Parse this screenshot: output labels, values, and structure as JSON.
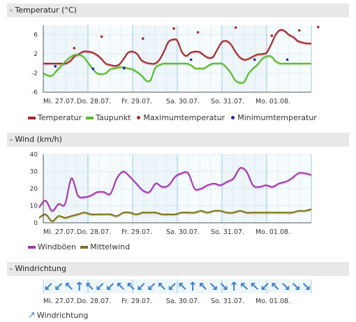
{
  "x_labels": [
    "Mi. 27.07.",
    "Do. 28.07.",
    "Fr. 29.07.",
    "Sa. 30.07.",
    "So. 31.07.",
    "Mo. 01.08."
  ],
  "colors": {
    "temperature": "#a3282a",
    "dewpoint": "#5cb82c",
    "max_temp": "#9a2e22",
    "min_temp": "#2222aa",
    "gust": "#a335b0",
    "wind": "#807010",
    "arrow": "#3a7bd5",
    "plot_bg": "#eef6fa",
    "grid": "#9ccbe0"
  },
  "sections": {
    "temperature_title": "- Temperatur (°C)",
    "wind_title": "- Wind (km/h)",
    "direction_title": "- Windrichtung"
  },
  "legend": {
    "temperature": "Temperatur",
    "dewpoint": "Taupunkt",
    "max_temp": "Maximumtemperatur",
    "min_temp": "Minimumtemperatur",
    "gust": "Windböen",
    "wind": "Mittelwind",
    "direction": "Windrichtung"
  },
  "chart_data": [
    {
      "type": "line",
      "title": "Temperatur (°C)",
      "ylim": [
        -6,
        8
      ],
      "yticks": [
        -6,
        -2,
        2,
        6
      ],
      "x": [
        0,
        0.25,
        0.5,
        0.75,
        1,
        1.25,
        1.5,
        1.75,
        2,
        2.25,
        2.5,
        2.75,
        3,
        3.25,
        3.5,
        3.75,
        4,
        4.25,
        4.5,
        4.75,
        5,
        5.25,
        5.5,
        5.75,
        6,
        6.25,
        6.5,
        6.75,
        7,
        7.25,
        7.5,
        7.75,
        8,
        8.25,
        8.5,
        8.75,
        9,
        9.25,
        9.5,
        9.75,
        10,
        10.25,
        10.5,
        10.75,
        11,
        11.25,
        11.5,
        11.75,
        12,
        12.25,
        12.5,
        12.75,
        13,
        13.25,
        13.5,
        13.75,
        14,
        14.25,
        14.5,
        14.75,
        15,
        15.25,
        15.5,
        15.75,
        16,
        16.25,
        16.5,
        16.75,
        17,
        17.25,
        17.5,
        17.75,
        18,
        18.25,
        18.5,
        18.75,
        19,
        19.25,
        19.5,
        19.75,
        20,
        20.25,
        20.5,
        20.75,
        21,
        21.25,
        21.5,
        21.75,
        22,
        22.25,
        22.5,
        22.75,
        23,
        23.25,
        23.5,
        23.75,
        24
      ],
      "series": [
        {
          "name": "Temperatur",
          "values": [
            0,
            0,
            0,
            0,
            0,
            0,
            0.5,
            1.5,
            2,
            2.5,
            2.5,
            2.3,
            1.8,
            1,
            0,
            -0.3,
            -0.5,
            -0.2,
            1,
            2.3,
            2.5,
            2,
            0.7,
            0.2,
            0,
            0,
            0.8,
            2.5,
            4.5,
            5,
            4.8,
            2.5,
            1.6,
            2.3,
            2.5,
            2.4,
            1.7,
            1.2,
            1.4,
            3,
            4.5,
            4.7,
            4,
            2.5,
            1.3,
            0.8,
            1,
            1.5,
            1.9,
            2,
            2.3,
            4,
            6,
            7,
            6.8,
            6,
            5.5,
            4.7,
            4.4,
            4.2,
            4.2,
            4.2,
            4.2,
            4.2,
            4.2,
            4.2,
            4.2,
            4.2,
            4.2,
            4.2,
            4.2,
            4.2,
            4.2,
            4.2,
            4.2,
            4.2,
            4.2,
            4.2,
            4.2,
            4.2,
            4.2,
            4.2,
            4.2,
            4.2,
            4.2,
            4.2,
            4.2,
            4.2,
            4.2,
            4.2,
            4.2,
            4.2,
            4.2,
            4.2,
            4.2,
            4.2,
            4.2
          ]
        },
        {
          "name": "Taupunkt",
          "values": [
            -2,
            -2.5,
            -2.5,
            -1.5,
            -0.5,
            0.5,
            1.3,
            1.8,
            1.8,
            1.4,
            0.2,
            -1,
            -2,
            -2.2,
            -2,
            -1.2,
            -1,
            -0.8,
            -0.8,
            -1,
            -1.2,
            -1.8,
            -2.5,
            -3.5,
            -3.5,
            -1,
            -0.3,
            0,
            0,
            0,
            0,
            0,
            0,
            -0.3,
            -1,
            -1,
            -1,
            -0.4,
            0,
            0,
            0,
            -0.8,
            -2,
            -3.5,
            -4,
            -3.8,
            -2,
            -1,
            -0.2,
            1,
            1.5,
            1.5,
            0.5,
            0,
            0,
            0,
            0,
            0,
            0,
            0,
            0,
            0,
            0,
            0,
            0,
            0,
            0,
            0,
            0,
            0,
            0,
            0,
            0,
            0,
            0,
            0,
            0,
            0,
            0,
            0,
            0,
            0,
            0,
            0,
            0,
            0,
            0,
            0,
            0,
            0,
            0,
            0,
            0,
            0,
            0,
            0,
            0
          ]
        }
      ],
      "max_points": [
        [
          1.8,
          3.2
        ],
        [
          3.4,
          5.6
        ],
        [
          5.8,
          5.2
        ],
        [
          7.6,
          7.3
        ],
        [
          9.0,
          6.5
        ],
        [
          11.2,
          7.5
        ],
        [
          13.3,
          5.8
        ],
        [
          14.9,
          6.9
        ],
        [
          16.0,
          7.6
        ]
      ],
      "min_points": [
        [
          0.7,
          -0.6
        ],
        [
          2.9,
          -1.1
        ],
        [
          4.7,
          -1.0
        ],
        [
          8.6,
          0.8
        ],
        [
          12.3,
          0.8
        ],
        [
          14.2,
          0.8
        ]
      ]
    },
    {
      "type": "line",
      "title": "Wind (km/h)",
      "ylim": [
        0,
        40
      ],
      "yticks": [
        0,
        10,
        20,
        30,
        40
      ],
      "series": [
        {
          "name": "Windböen",
          "values": [
            9,
            13,
            7,
            11,
            11,
            26,
            16,
            15,
            16,
            18,
            18,
            17,
            26,
            30,
            27,
            23,
            19,
            18,
            23,
            21,
            22,
            27,
            29,
            29,
            20,
            20,
            22,
            23,
            22,
            24,
            26,
            32,
            30,
            22,
            21,
            22,
            21,
            23,
            24,
            26,
            29,
            29,
            28
          ]
        },
        {
          "name": "Mittelwind",
          "values": [
            3,
            5,
            1,
            4,
            3,
            4,
            5,
            6,
            5,
            5,
            5,
            5,
            4,
            6,
            6,
            5,
            6,
            6,
            6,
            5,
            5,
            5,
            6,
            6,
            6,
            7,
            6,
            7,
            7,
            6,
            6,
            7,
            6,
            6,
            6,
            6,
            6,
            6,
            6,
            6,
            7,
            7,
            8
          ]
        }
      ]
    }
  ],
  "wind_directions": [
    "↙",
    "↙",
    "↖",
    "↑",
    "↖",
    "↙",
    "↙",
    "↖",
    "↖",
    "↙",
    "↙",
    "↖",
    "↙",
    "↖",
    "↑",
    "↖",
    "↘",
    "↘",
    "↑",
    "↖",
    "↖",
    "↙",
    "↖",
    "↘",
    "↘",
    "↘"
  ]
}
